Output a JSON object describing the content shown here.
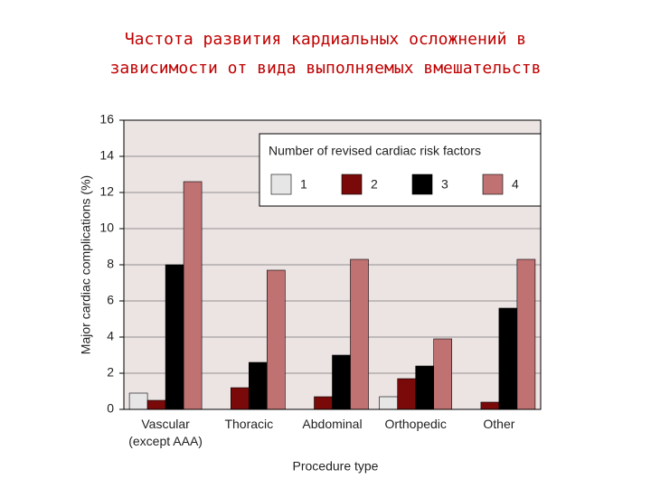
{
  "chart_data": {
    "type": "bar",
    "title": [
      "Частота развития кардиальных осложнений в",
      "зависимости от вида выполняемых вмешательств"
    ],
    "x_label": "Procedure type",
    "y_label": "Major cardiac complications (%)",
    "legend_title": "Number of revised cardiac risk factors",
    "categories": [
      "Vascular (except AAA)",
      "Thoracic",
      "Abdominal",
      "Orthopedic",
      "Other"
    ],
    "series": [
      {
        "name": "1",
        "color": "#e6e6e6",
        "values": [
          0.9,
          null,
          null,
          0.7,
          null
        ]
      },
      {
        "name": "2",
        "color": "#7a0a0a",
        "values": [
          0.5,
          1.2,
          0.7,
          1.7,
          0.4
        ]
      },
      {
        "name": "3",
        "color": "#000000",
        "values": [
          8.0,
          2.6,
          3.0,
          2.4,
          5.6
        ]
      },
      {
        "name": "4",
        "color": "#c07272",
        "values": [
          12.6,
          7.7,
          8.3,
          3.9,
          8.3
        ]
      }
    ],
    "ylim": [
      0,
      16
    ],
    "yticks": [
      0,
      2,
      4,
      6,
      8,
      10,
      12,
      14,
      16
    ],
    "grid": true
  }
}
